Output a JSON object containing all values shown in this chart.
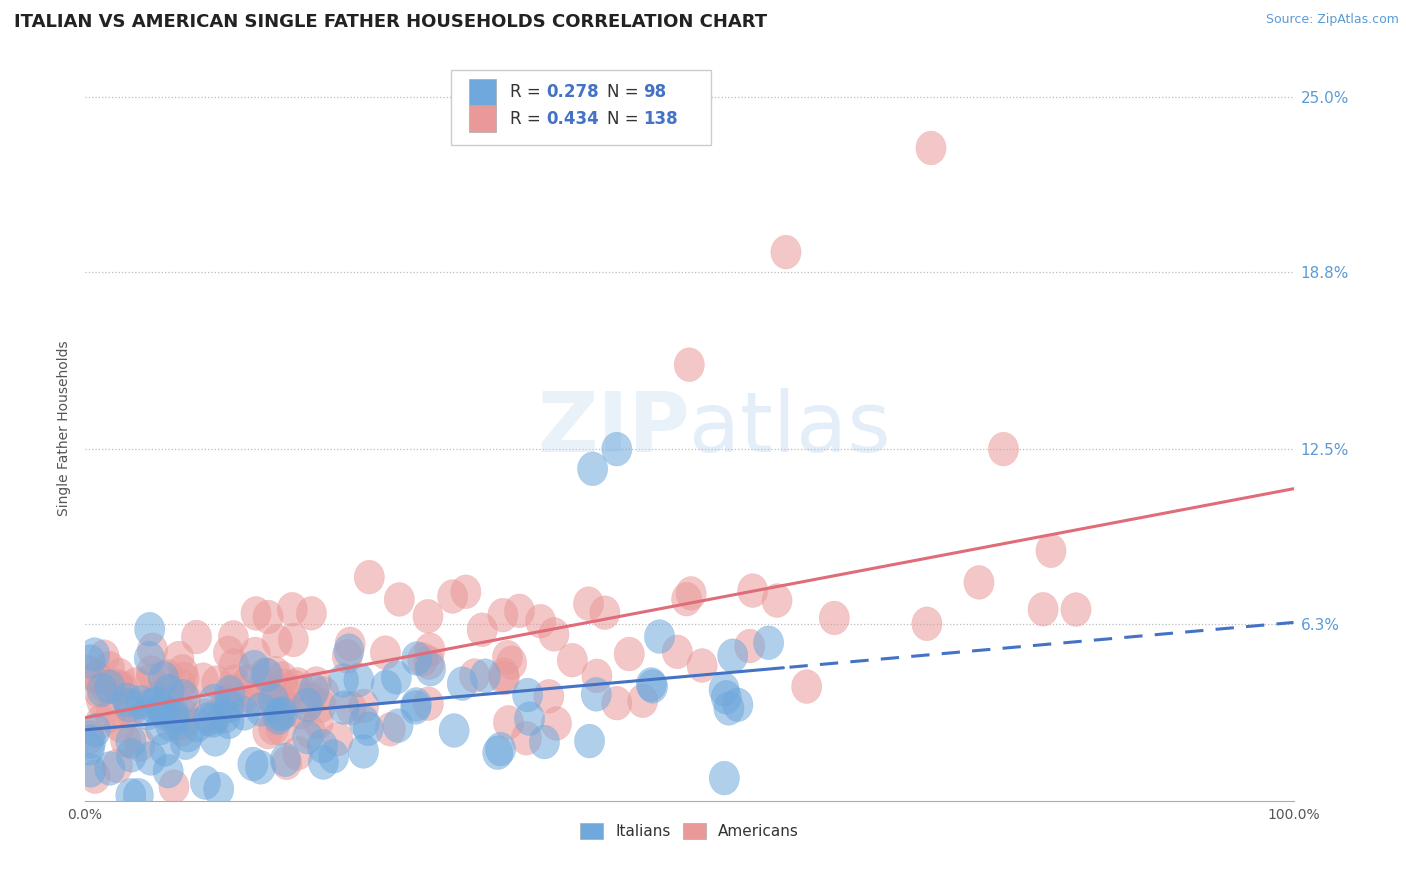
{
  "title": "ITALIAN VS AMERICAN SINGLE FATHER HOUSEHOLDS CORRELATION CHART",
  "source": "Source: ZipAtlas.com",
  "ylabel": "Single Father Households",
  "xlim": [
    0.0,
    1.0
  ],
  "ylim": [
    0.0,
    0.265
  ],
  "xtick_labels": [
    "0.0%",
    "100.0%"
  ],
  "ytick_labels": [
    "6.3%",
    "12.5%",
    "18.8%",
    "25.0%"
  ],
  "ytick_values": [
    0.063,
    0.125,
    0.188,
    0.25
  ],
  "color_italian": "#6fa8dc",
  "color_american": "#ea9999",
  "line_color_italian": "#4472c4",
  "line_color_american": "#e06c7a",
  "watermark_zip": "ZIP",
  "watermark_atlas": "atlas",
  "title_fontsize": 13,
  "label_fontsize": 10,
  "tick_fontsize": 10,
  "legend_fontsize": 13
}
